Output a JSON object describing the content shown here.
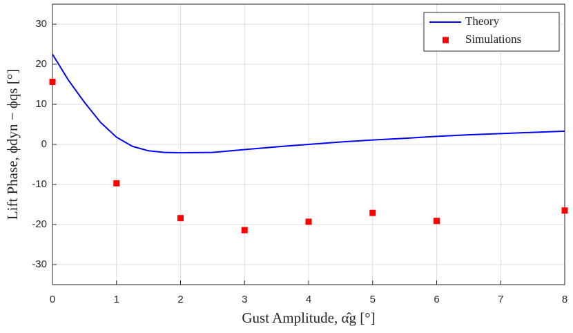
{
  "chart_data": {
    "type": "line",
    "xlabel": "Gust Amplitude, α̂g [°]",
    "ylabel": "Lift Phase, ϕdyn − ϕqs [°]",
    "xlim": [
      0,
      8
    ],
    "xticks": [
      0,
      1,
      2,
      3,
      4,
      5,
      6,
      7,
      8
    ],
    "ylim": [
      -35,
      35
    ],
    "yticks": [
      -30,
      -20,
      -10,
      0,
      10,
      20,
      30
    ],
    "grid": true,
    "legend": "top-right",
    "series": [
      {
        "name": "Theory",
        "color": "#0000ff",
        "style": "line",
        "x": [
          0,
          0.25,
          0.5,
          0.75,
          1,
          1.25,
          1.5,
          1.75,
          2,
          2.5,
          3,
          3.5,
          4,
          4.5,
          5,
          5.5,
          6,
          6.5,
          7,
          7.5,
          8
        ],
        "values": [
          22.5,
          16,
          10.5,
          5.5,
          1.8,
          -0.5,
          -1.6,
          -2,
          -2.1,
          -2,
          -1.3,
          -0.6,
          0,
          0.6,
          1.1,
          1.5,
          2,
          2.4,
          2.7,
          3,
          3.3
        ]
      },
      {
        "name": "Simulations",
        "color": "#ff0000",
        "style": "marker",
        "x": [
          0,
          1,
          2,
          3,
          4,
          5,
          6,
          8
        ],
        "values": [
          15.6,
          -9.7,
          -18.4,
          -21.4,
          -19.3,
          -17.1,
          -19.1,
          -16.5
        ]
      }
    ]
  }
}
